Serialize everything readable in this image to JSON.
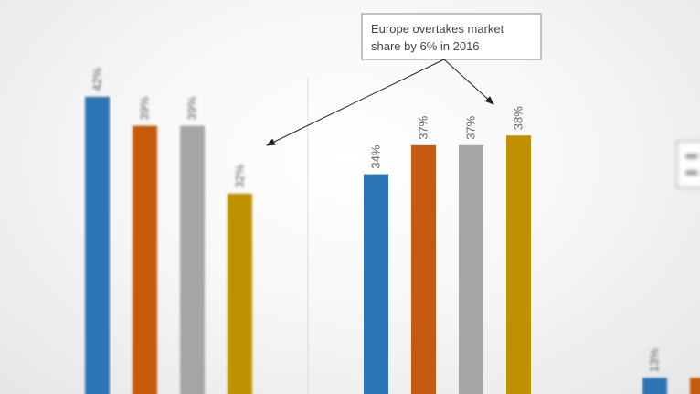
{
  "chart_data": {
    "type": "bar",
    "series_colors": [
      "#2e75b6",
      "#c55a11",
      "#a5a5a5",
      "#bf9000"
    ],
    "panels": [
      {
        "values": [
          42,
          39,
          39,
          32
        ],
        "labels": [
          "42%",
          "39%",
          "39%",
          "32%"
        ]
      },
      {
        "values": [
          34,
          37,
          37,
          38
        ],
        "labels": [
          "34%",
          "37%",
          "37%",
          "38%"
        ]
      },
      {
        "values": [
          13,
          13
        ],
        "labels": [
          "13%",
          ""
        ]
      }
    ],
    "ylim": [
      0,
      50
    ],
    "annotations": [
      {
        "text_line1": "Europe overtakes market",
        "text_line2": "share by 6% in 2016"
      }
    ]
  }
}
